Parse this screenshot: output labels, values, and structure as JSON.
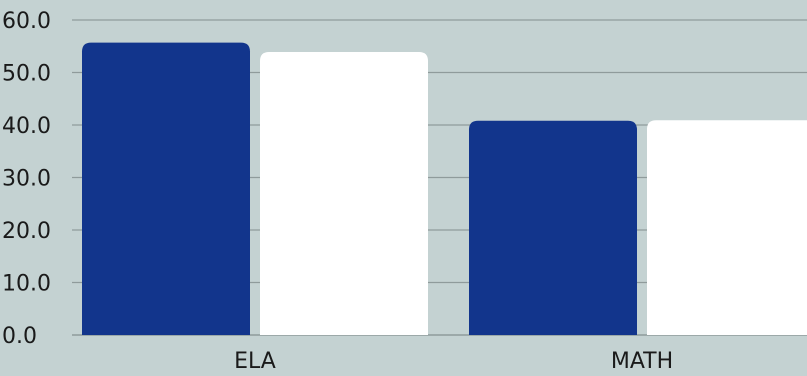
{
  "chart_data": {
    "type": "bar",
    "categories": [
      "ELA",
      "MATH"
    ],
    "series": [
      {
        "values": [
          55.7,
          40.8
        ],
        "color": "#12358c"
      },
      {
        "values": [
          53.9,
          40.9
        ],
        "color": "#ffffff"
      }
    ],
    "ylim": [
      0,
      60
    ],
    "yticks": [
      "0.0",
      "10.0",
      "20.0",
      "30.0",
      "40.0",
      "50.0",
      "60.0"
    ],
    "xlabel": "",
    "ylabel": "",
    "title": "",
    "grid": true,
    "gridline_color": "#8f9b9b",
    "background_color": "#c4d2d2",
    "legend": "none"
  }
}
